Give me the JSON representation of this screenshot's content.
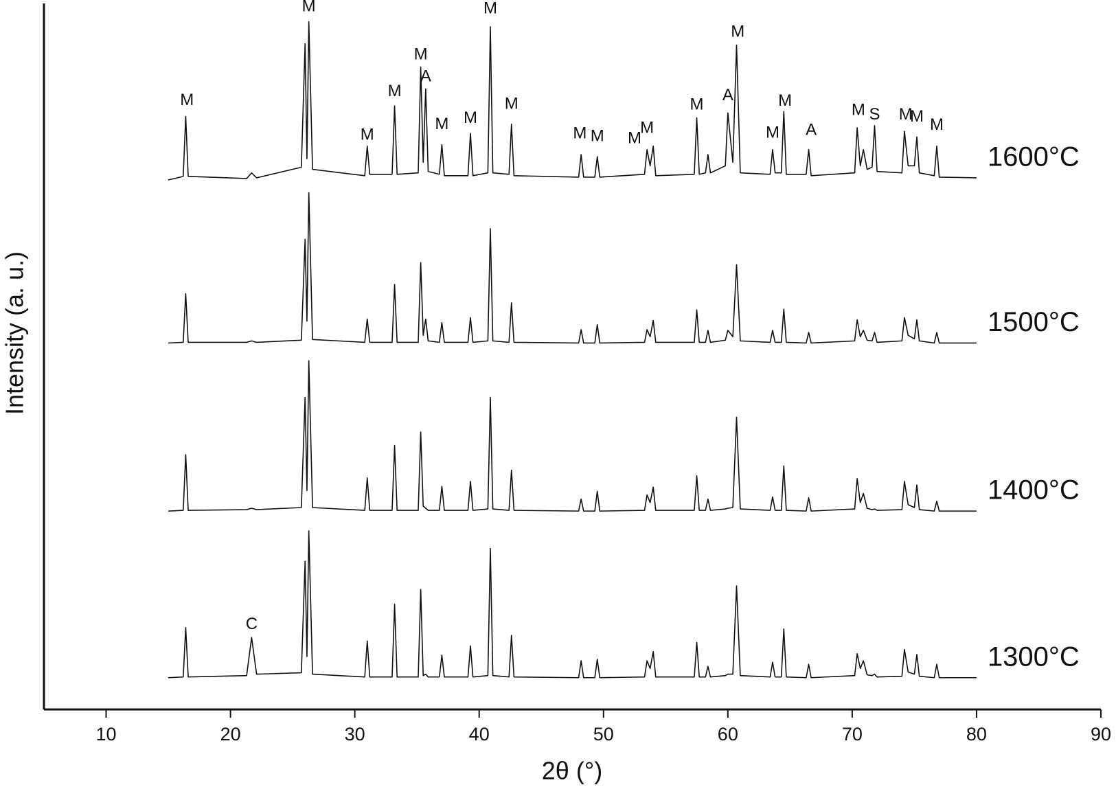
{
  "chart_data": {
    "type": "line",
    "xlabel": "2θ (°)",
    "ylabel": "Intensity (a. u.)",
    "xlim": [
      5,
      90
    ],
    "xticks": [
      10,
      20,
      30,
      40,
      50,
      60,
      70,
      80,
      90
    ],
    "ylim": [
      0,
      100
    ],
    "x": [
      15,
      16.2,
      16.4,
      16.6,
      21.3,
      21.7,
      22.1,
      25.7,
      26.0,
      26.15,
      26.3,
      26.6,
      30.8,
      31.0,
      31.2,
      33.0,
      33.2,
      33.4,
      35.1,
      35.3,
      35.5,
      35.7,
      35.9,
      36.8,
      37.0,
      37.2,
      39.1,
      39.3,
      39.5,
      40.7,
      40.9,
      41.1,
      42.4,
      42.6,
      42.8,
      48.0,
      48.2,
      48.4,
      49.3,
      49.5,
      49.7,
      53.3,
      53.5,
      53.75,
      54.0,
      54.2,
      57.3,
      57.5,
      57.7,
      58.2,
      58.4,
      58.6,
      59.8,
      60.0,
      60.4,
      60.7,
      61.0,
      63.4,
      63.6,
      63.8,
      64.3,
      64.5,
      64.7,
      66.3,
      66.5,
      66.7,
      70.2,
      70.4,
      70.65,
      70.9,
      71.2,
      71.6,
      71.8,
      72.0,
      74.0,
      74.2,
      74.5,
      75.0,
      75.2,
      75.4,
      76.6,
      76.8,
      77.0,
      80
    ],
    "series": [
      {
        "name": "1600°C",
        "color": "#111111",
        "values": [
          75.0,
          75.5,
          84.0,
          75.5,
          75.2,
          76.0,
          75.3,
          76.8,
          94.3,
          78.0,
          97.4,
          76.5,
          75.6,
          79.8,
          75.8,
          75.8,
          85.5,
          75.8,
          76.0,
          91.0,
          77.5,
          87.9,
          76.2,
          75.8,
          80.0,
          75.6,
          75.6,
          81.6,
          75.6,
          76.0,
          96.7,
          76.0,
          75.8,
          82.9,
          75.6,
          75.4,
          78.6,
          75.4,
          75.4,
          78.3,
          75.4,
          75.8,
          79.3,
          77.0,
          79.8,
          75.6,
          75.8,
          83.8,
          75.8,
          76.0,
          78.6,
          76.0,
          77.0,
          84.5,
          77.5,
          94.1,
          76.0,
          75.8,
          79.3,
          76.0,
          76.0,
          84.7,
          75.8,
          75.8,
          79.3,
          75.6,
          76.0,
          82.4,
          77.0,
          79.3,
          76.5,
          76.8,
          82.7,
          76.2,
          76.0,
          81.9,
          77.0,
          77.0,
          81.1,
          76.0,
          75.6,
          79.8,
          75.4,
          75.3
        ]
      },
      {
        "name": "1500°C",
        "color": "#111111",
        "values": [
          51.9,
          52.0,
          58.9,
          52.0,
          52.0,
          52.2,
          52.0,
          52.3,
          66.6,
          55.0,
          73.2,
          52.4,
          52.0,
          55.3,
          52.0,
          52.0,
          60.2,
          52.0,
          52.0,
          63.3,
          53.0,
          55.3,
          52.2,
          52.0,
          54.8,
          52.0,
          52.0,
          55.5,
          52.0,
          52.2,
          68.1,
          52.2,
          52.0,
          57.6,
          52.0,
          51.9,
          53.8,
          51.9,
          51.9,
          54.5,
          51.9,
          52.0,
          53.8,
          52.8,
          55.1,
          52.0,
          52.0,
          56.6,
          52.0,
          52.0,
          53.7,
          52.0,
          52.3,
          53.7,
          52.8,
          63.0,
          52.2,
          52.0,
          53.7,
          52.0,
          52.0,
          56.7,
          52.0,
          51.9,
          53.4,
          51.9,
          52.2,
          55.2,
          52.8,
          53.7,
          52.3,
          52.2,
          53.4,
          52.0,
          52.2,
          55.5,
          53.0,
          52.5,
          55.2,
          52.2,
          51.9,
          53.4,
          51.9,
          51.9
        ]
      },
      {
        "name": "1400°C",
        "color": "#111111",
        "values": [
          28.1,
          28.2,
          36.1,
          28.2,
          28.3,
          28.5,
          28.3,
          28.6,
          44.2,
          31.0,
          49.4,
          28.6,
          28.2,
          32.8,
          28.2,
          28.2,
          37.4,
          28.2,
          28.2,
          39.3,
          28.8,
          28.5,
          28.2,
          28.2,
          31.6,
          28.2,
          28.2,
          32.3,
          28.2,
          28.4,
          44.2,
          28.4,
          28.2,
          33.9,
          28.2,
          28.1,
          29.8,
          28.1,
          28.1,
          30.9,
          28.1,
          28.2,
          30.4,
          29.3,
          31.5,
          28.2,
          28.2,
          33.1,
          28.2,
          28.2,
          29.8,
          28.2,
          28.4,
          28.5,
          28.6,
          41.4,
          28.4,
          28.2,
          30.1,
          28.2,
          28.2,
          34.5,
          28.2,
          28.1,
          30.0,
          28.1,
          28.4,
          32.7,
          29.3,
          30.6,
          28.5,
          28.3,
          28.4,
          28.2,
          28.3,
          32.3,
          29.0,
          28.6,
          31.8,
          28.3,
          28.1,
          29.5,
          28.1,
          28.1
        ]
      },
      {
        "name": "1300°C",
        "color": "#111111",
        "values": [
          4.5,
          4.6,
          11.6,
          4.6,
          4.8,
          10.2,
          5.0,
          5.2,
          21.0,
          7.5,
          25.3,
          5.0,
          4.6,
          9.7,
          4.6,
          4.6,
          14.9,
          4.6,
          4.6,
          17.0,
          4.8,
          5.0,
          4.6,
          4.6,
          7.7,
          4.6,
          4.6,
          9.0,
          4.6,
          4.8,
          22.8,
          4.8,
          4.6,
          10.5,
          4.6,
          4.5,
          6.9,
          4.5,
          4.5,
          7.1,
          4.5,
          4.6,
          6.9,
          5.8,
          8.2,
          4.6,
          4.6,
          9.5,
          4.6,
          4.6,
          6.1,
          4.6,
          4.8,
          5.0,
          5.0,
          17.5,
          4.8,
          4.6,
          6.7,
          4.6,
          4.6,
          11.4,
          4.6,
          4.5,
          6.4,
          4.5,
          4.8,
          7.9,
          5.8,
          6.9,
          4.9,
          4.8,
          5.0,
          4.6,
          4.7,
          8.5,
          5.3,
          5.0,
          7.8,
          4.7,
          4.5,
          6.4,
          4.5,
          4.5
        ]
      }
    ],
    "annotations": [
      {
        "text": "M",
        "x": 16.5,
        "y": 86.2
      },
      {
        "text": "M",
        "x": 26.3,
        "y": 99.5
      },
      {
        "text": "M",
        "x": 31.0,
        "y": 81.3
      },
      {
        "text": "M",
        "x": 33.2,
        "y": 87.5
      },
      {
        "text": "M",
        "x": 35.3,
        "y": 92.7
      },
      {
        "text": "A",
        "x": 35.7,
        "y": 89.6
      },
      {
        "text": "M",
        "x": 37.0,
        "y": 82.8
      },
      {
        "text": "M",
        "x": 39.3,
        "y": 83.7
      },
      {
        "text": "M",
        "x": 40.9,
        "y": 99.2
      },
      {
        "text": "M",
        "x": 42.6,
        "y": 85.7
      },
      {
        "text": "M",
        "x": 48.1,
        "y": 81.5
      },
      {
        "text": "M",
        "x": 49.5,
        "y": 81.1
      },
      {
        "text": "M",
        "x": 52.5,
        "y": 80.8
      },
      {
        "text": "M",
        "x": 53.5,
        "y": 82.3
      },
      {
        "text": "M",
        "x": 57.5,
        "y": 85.6
      },
      {
        "text": "A",
        "x": 60.0,
        "y": 86.9
      },
      {
        "text": "M",
        "x": 60.8,
        "y": 95.9
      },
      {
        "text": "M",
        "x": 63.6,
        "y": 81.6
      },
      {
        "text": "M",
        "x": 64.6,
        "y": 86.1
      },
      {
        "text": "A",
        "x": 66.7,
        "y": 82
      },
      {
        "text": "M",
        "x": 70.5,
        "y": 84.8
      },
      {
        "text": "S",
        "x": 71.8,
        "y": 84.2
      },
      {
        "text": "M",
        "x": 74.3,
        "y": 84.2
      },
      {
        "text": "M",
        "x": 75.2,
        "y": 83.9
      },
      {
        "text": "M",
        "x": 76.8,
        "y": 82.7
      },
      {
        "text": "C",
        "x": 21.7,
        "y": 12
      }
    ]
  }
}
